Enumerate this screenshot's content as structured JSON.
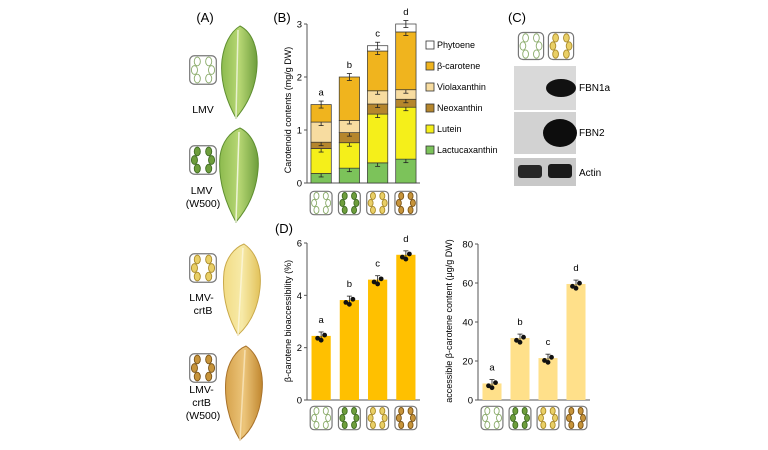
{
  "panels": {
    "A": "(A)",
    "B": "(B)",
    "C": "(C)",
    "D": "(D)"
  },
  "leaves": [
    {
      "label_lines": [
        "LMV"
      ],
      "plastid": "green-outline"
    },
    {
      "label_lines": [
        "LMV",
        "(W500)"
      ],
      "plastid": "green-filled"
    },
    {
      "label_lines": [
        "LMV-",
        "crtB"
      ],
      "plastid": "yellow"
    },
    {
      "label_lines": [
        "LMV-",
        "crtB",
        "(W500)"
      ],
      "plastid": "brown"
    }
  ],
  "colors": {
    "phytoene": "#ffffff",
    "beta_carotene": "#f0b41e",
    "violaxanthin": "#f7dca0",
    "neoxanthin": "#b5862c",
    "lutein": "#f5ef1a",
    "lactucaxanthin": "#7cc35a",
    "bar_gold": "#ffc000",
    "bar_light": "#ffe08a",
    "leaf_green": "#6e9e3c",
    "leaf_yellow": "#e9cf66",
    "leaf_brown": "#c7943a"
  },
  "blot": {
    "bands": [
      {
        "label": "FBN1a"
      },
      {
        "label": "FBN2"
      },
      {
        "label": "Actin"
      }
    ]
  },
  "chart_data": [
    {
      "type": "bar",
      "stacked": true,
      "panel": "B",
      "ylabel": "Carotenoid contents (mg/g DW)",
      "ylim": [
        0,
        3
      ],
      "yticks": [
        0,
        1,
        2,
        3
      ],
      "categories": [
        "LMV",
        "LMV (W500)",
        "LMV-crtB",
        "LMV-crtB (W500)"
      ],
      "letters": [
        "a",
        "b",
        "c",
        "d"
      ],
      "legend": [
        "Phytoene",
        "β-carotene",
        "Violaxanthin",
        "Neoxanthin",
        "Lutein",
        "Lactucaxanthin"
      ],
      "series": [
        {
          "name": "Lactucaxanthin",
          "values": [
            0.18,
            0.28,
            0.38,
            0.45
          ]
        },
        {
          "name": "Lutein",
          "values": [
            0.47,
            0.48,
            0.92,
            0.98
          ]
        },
        {
          "name": "Neoxanthin",
          "values": [
            0.12,
            0.19,
            0.19,
            0.15
          ]
        },
        {
          "name": "Violaxanthin",
          "values": [
            0.38,
            0.23,
            0.25,
            0.18
          ]
        },
        {
          "name": "β-carotene",
          "values": [
            0.33,
            0.82,
            0.75,
            1.09
          ]
        },
        {
          "name": "Phytoene",
          "values": [
            0.0,
            0.0,
            0.1,
            0.15
          ]
        }
      ]
    },
    {
      "type": "bar",
      "panel": "D",
      "ylabel": "β-carotene bioaccessibility (%)",
      "ylim": [
        0,
        6
      ],
      "yticks": [
        0,
        2,
        4,
        6
      ],
      "categories": [
        "LMV",
        "LMV (W500)",
        "LMV-crtB",
        "LMV-crtB (W500)"
      ],
      "letters": [
        "a",
        "b",
        "c",
        "d"
      ],
      "values": [
        2.45,
        3.82,
        4.6,
        5.55
      ]
    },
    {
      "type": "bar",
      "panel": "D",
      "ylabel": "accessible β-carotene content (μg/g DW)",
      "ylim": [
        0,
        80
      ],
      "yticks": [
        0,
        20,
        40,
        60,
        80
      ],
      "categories": [
        "LMV",
        "LMV (W500)",
        "LMV-crtB",
        "LMV-crtB (W500)"
      ],
      "letters": [
        "a",
        "b",
        "c",
        "d"
      ],
      "values": [
        8.5,
        31.8,
        21.5,
        59.5
      ]
    }
  ]
}
